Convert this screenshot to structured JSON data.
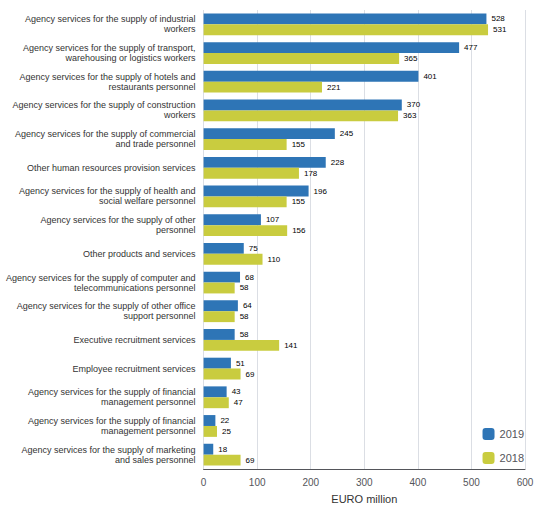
{
  "chart_data": {
    "type": "bar",
    "orientation": "horizontal",
    "categories": [
      "Agency services for the supply of industrial\nworkers",
      "Agency services for the supply of transport,\nwarehousing or logistics workers",
      "Agency services for the supply of hotels and\nrestaurants personnel",
      "Agency services for the supply of construction\nworkers",
      "Agency services for the supply of commercial\nand trade personnel",
      "Other human resources provision services",
      "Agency services for the supply of health and\nsocial welfare personnel",
      "Agency services for the supply of other\npersonnel",
      "Other products and services",
      "Agency services for the supply of computer and\ntelecommunications personnel",
      "Agency services for the supply of other office\nsupport personnel",
      "Executive recruitment services",
      "Employee recruitment services",
      "Agency services for the supply of financial\nmanagement personnel",
      "Agency services for the supply of financial\nmanagement personnel",
      "Agency services for the supply of marketing\nand sales personnel"
    ],
    "series": [
      {
        "name": "2019",
        "color": "#2e75b6",
        "values": [
          528,
          477,
          401,
          370,
          245,
          228,
          196,
          107,
          75,
          68,
          64,
          58,
          51,
          43,
          22,
          18
        ]
      },
      {
        "name": "2018",
        "color": "#c9cc3f",
        "values": [
          531,
          365,
          221,
          363,
          155,
          178,
          155,
          156,
          110,
          58,
          58,
          141,
          69,
          47,
          25,
          69
        ]
      }
    ],
    "xlabel": "EURO million",
    "xlim": [
      0,
      600
    ],
    "xticks": [
      0,
      100,
      200,
      300,
      400,
      500,
      600
    ],
    "grid": true,
    "legend": "lower right",
    "data_labels": true
  }
}
